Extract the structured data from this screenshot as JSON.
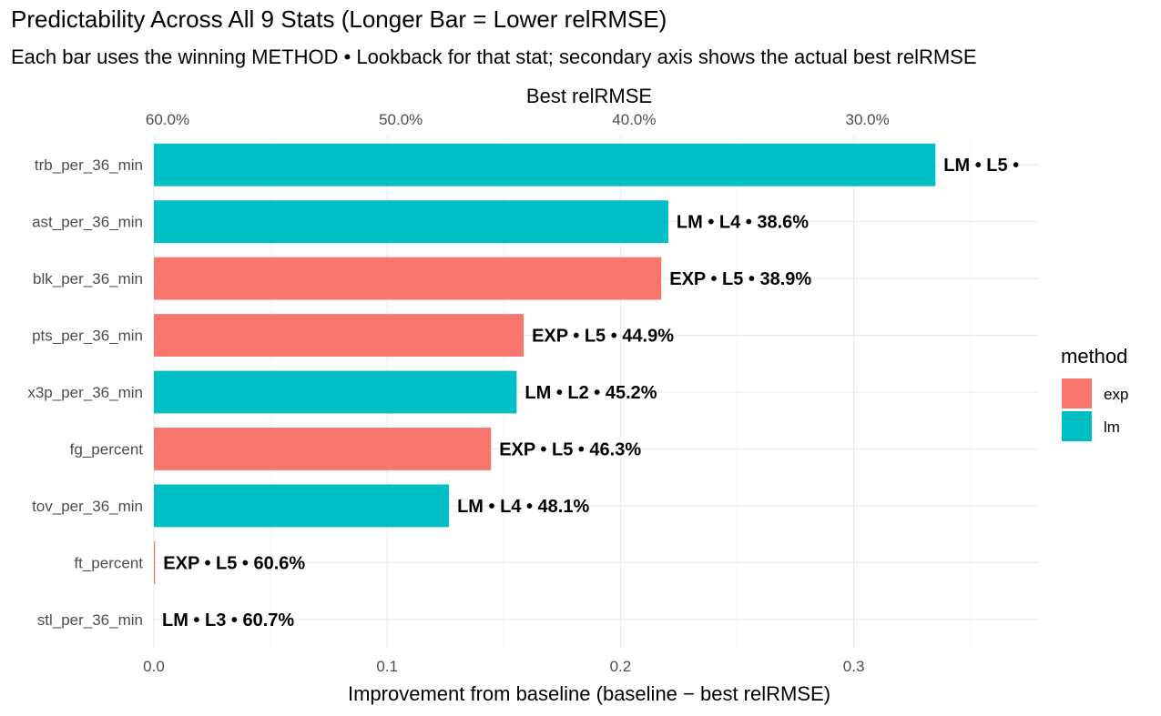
{
  "chart_data": {
    "type": "bar",
    "orientation": "horizontal",
    "title": "Predictability Across All 9 Stats (Longer Bar = Lower relRMSE)",
    "subtitle": "Each bar uses the winning METHOD • Lookback for that stat; secondary axis shows the actual best relRMSE",
    "xlabel": "Improvement from baseline (baseline − best relRMSE)",
    "secondary_xlabel": "Best relRMSE",
    "x_ticks": [
      "0.0",
      "0.1",
      "0.2",
      "0.3"
    ],
    "x_tick_values": [
      0.0,
      0.1,
      0.2,
      0.3
    ],
    "secondary_ticks": [
      "60.0%",
      "50.0%",
      "40.0%",
      "30.0%"
    ],
    "secondary_tick_values": [
      0.0,
      0.1,
      0.2,
      0.3
    ],
    "xlim": [
      0,
      0.35
    ],
    "grid": true,
    "legend_position": "right",
    "legend": {
      "title": "method",
      "entries": [
        {
          "label": "exp",
          "color": "#F8766D"
        },
        {
          "label": "lm",
          "color": "#00BFC4"
        }
      ]
    },
    "categories": [
      "trb_per_36_min",
      "ast_per_36_min",
      "blk_per_36_min",
      "pts_per_36_min",
      "x3p_per_36_min",
      "fg_percent",
      "tov_per_36_min",
      "ft_percent",
      "stl_per_36_min"
    ],
    "values": [
      0.335,
      0.2205,
      0.2175,
      0.1585,
      0.1555,
      0.1445,
      0.1265,
      0.0005,
      0.0
    ],
    "methods": [
      "lm",
      "lm",
      "exp",
      "exp",
      "lm",
      "exp",
      "lm",
      "exp",
      "lm"
    ],
    "labels": [
      "LM • L5 •",
      "LM • L4 • 38.6%",
      "EXP • L5 • 38.9%",
      "EXP • L5 • 44.9%",
      "LM • L2 • 45.2%",
      "EXP • L5 • 46.3%",
      "LM • L4 • 48.1%",
      "EXP • L5 • 60.6%",
      "LM • L3 • 60.7%"
    ]
  }
}
